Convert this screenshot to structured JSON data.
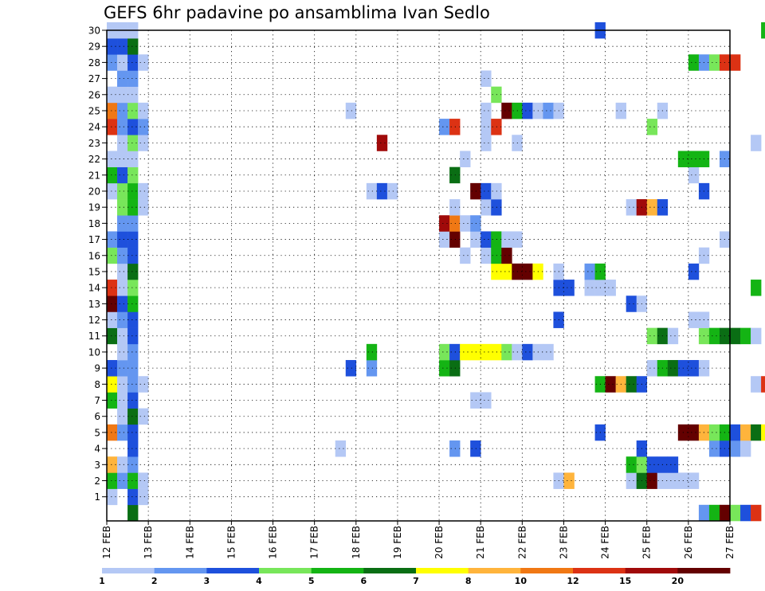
{
  "chart_data": {
    "type": "heatmap",
    "title": "GEFS 6hr padavine po ansamblima Ivan Sedlo",
    "xlabel": "",
    "ylabel": "",
    "x_tick_labels": [
      "12 FEB",
      "13 FEB",
      "14 FEB",
      "15 FEB",
      "16 FEB",
      "17 FEB",
      "18 FEB",
      "19 FEB",
      "20 FEB",
      "21 FEB",
      "22 FEB",
      "23 FEB",
      "24 FEB",
      "25 FEB",
      "26 FEB",
      "27 FEB"
    ],
    "y_tick_labels": [
      "1",
      "2",
      "3",
      "4",
      "5",
      "6",
      "7",
      "8",
      "9",
      "10",
      "11",
      "12",
      "13",
      "14",
      "15",
      "16",
      "17",
      "18",
      "19",
      "20",
      "21",
      "22",
      "23",
      "24",
      "25",
      "26",
      "27",
      "28",
      "29",
      "30"
    ],
    "ylim": [
      0,
      30
    ],
    "grid": true,
    "color_scale": {
      "levels": [
        1,
        2,
        3,
        4,
        5,
        6,
        7,
        8,
        10,
        12,
        15,
        20
      ],
      "colors": [
        "#b4c8f5",
        "#6496f0",
        "#1e50dc",
        "#78e65a",
        "#14b414",
        "#0a6e14",
        "#ffff00",
        "#ffb43c",
        "#f07814",
        "#dc3214",
        "#a00a0a",
        "#640000"
      ]
    },
    "cells": [
      [
        0,
        0,
        1
      ],
      [
        0,
        1,
        5
      ],
      [
        0,
        2,
        8
      ],
      [
        0,
        4,
        9
      ],
      [
        0,
        6,
        5
      ],
      [
        0,
        7,
        7
      ],
      [
        0,
        8,
        3
      ],
      [
        0,
        10,
        6
      ],
      [
        0,
        11,
        1
      ],
      [
        0,
        12,
        12
      ],
      [
        0,
        13,
        10
      ],
      [
        0,
        15,
        4
      ],
      [
        0,
        16,
        2
      ],
      [
        0,
        19,
        1
      ],
      [
        0,
        20,
        5
      ],
      [
        0,
        21,
        1
      ],
      [
        0,
        23,
        10
      ],
      [
        0,
        24,
        9
      ],
      [
        0,
        25,
        1
      ],
      [
        0,
        27,
        2
      ],
      [
        0,
        28,
        3
      ],
      [
        0,
        29,
        1
      ],
      [
        1,
        1,
        2
      ],
      [
        1,
        2,
        1
      ],
      [
        1,
        4,
        2
      ],
      [
        1,
        5,
        1
      ],
      [
        1,
        6,
        1
      ],
      [
        1,
        7,
        1
      ],
      [
        1,
        8,
        2
      ],
      [
        1,
        9,
        1
      ],
      [
        1,
        10,
        1
      ],
      [
        1,
        11,
        2
      ],
      [
        1,
        12,
        3
      ],
      [
        1,
        13,
        1
      ],
      [
        1,
        14,
        1
      ],
      [
        1,
        15,
        2
      ],
      [
        1,
        16,
        3
      ],
      [
        1,
        17,
        2
      ],
      [
        1,
        18,
        4
      ],
      [
        1,
        19,
        4
      ],
      [
        1,
        20,
        3
      ],
      [
        1,
        21,
        1
      ],
      [
        1,
        22,
        1
      ],
      [
        1,
        23,
        2
      ],
      [
        1,
        24,
        2
      ],
      [
        1,
        25,
        1
      ],
      [
        1,
        26,
        2
      ],
      [
        1,
        27,
        1
      ],
      [
        1,
        28,
        3
      ],
      [
        1,
        29,
        1
      ],
      [
        2,
        -1,
        6
      ],
      [
        2,
        0,
        3
      ],
      [
        2,
        1,
        5
      ],
      [
        2,
        2,
        2
      ],
      [
        2,
        3,
        3
      ],
      [
        2,
        4,
        3
      ],
      [
        2,
        5,
        6
      ],
      [
        2,
        6,
        3
      ],
      [
        2,
        7,
        2
      ],
      [
        2,
        8,
        2
      ],
      [
        2,
        9,
        2
      ],
      [
        2,
        10,
        3
      ],
      [
        2,
        11,
        3
      ],
      [
        2,
        12,
        5
      ],
      [
        2,
        13,
        4
      ],
      [
        2,
        14,
        6
      ],
      [
        2,
        15,
        3
      ],
      [
        2,
        16,
        3
      ],
      [
        2,
        17,
        2
      ],
      [
        2,
        18,
        5
      ],
      [
        2,
        19,
        5
      ],
      [
        2,
        20,
        4
      ],
      [
        2,
        21,
        1
      ],
      [
        2,
        22,
        4
      ],
      [
        2,
        23,
        3
      ],
      [
        2,
        24,
        4
      ],
      [
        2,
        25,
        1
      ],
      [
        2,
        26,
        2
      ],
      [
        2,
        27,
        3
      ],
      [
        2,
        28,
        6
      ],
      [
        2,
        29,
        1
      ],
      [
        3,
        0,
        1
      ],
      [
        3,
        1,
        1
      ],
      [
        3,
        5,
        1
      ],
      [
        3,
        7,
        1
      ],
      [
        3,
        18,
        1
      ],
      [
        3,
        19,
        1
      ],
      [
        3,
        22,
        1
      ],
      [
        3,
        23,
        2
      ],
      [
        3,
        24,
        1
      ],
      [
        3,
        27,
        1
      ],
      [
        22,
        3,
        1
      ],
      [
        23,
        8,
        3
      ],
      [
        23,
        24,
        1
      ],
      [
        25,
        8,
        2
      ],
      [
        25,
        9,
        5
      ],
      [
        25,
        19,
        1
      ],
      [
        26,
        19,
        3
      ],
      [
        26,
        22,
        11
      ],
      [
        27,
        19,
        1
      ],
      [
        32,
        8,
        5
      ],
      [
        32,
        9,
        4
      ],
      [
        32,
        16,
        1
      ],
      [
        32,
        17,
        11
      ],
      [
        32,
        23,
        2
      ],
      [
        33,
        3,
        2
      ],
      [
        33,
        8,
        6
      ],
      [
        33,
        9,
        3
      ],
      [
        33,
        16,
        12
      ],
      [
        33,
        17,
        9
      ],
      [
        33,
        18,
        1
      ],
      [
        33,
        20,
        6
      ],
      [
        33,
        23,
        10
      ],
      [
        34,
        9,
        7
      ],
      [
        34,
        15,
        1
      ],
      [
        34,
        17,
        1
      ],
      [
        34,
        21,
        1
      ],
      [
        35,
        3,
        3
      ],
      [
        35,
        6,
        1
      ],
      [
        35,
        9,
        7
      ],
      [
        35,
        16,
        1
      ],
      [
        35,
        17,
        2
      ],
      [
        35,
        19,
        15
      ],
      [
        36,
        6,
        1
      ],
      [
        36,
        9,
        7
      ],
      [
        36,
        15,
        1
      ],
      [
        36,
        16,
        3
      ],
      [
        36,
        18,
        1
      ],
      [
        36,
        19,
        3
      ],
      [
        36,
        22,
        1
      ],
      [
        36,
        23,
        1
      ],
      [
        36,
        24,
        1
      ],
      [
        36,
        26,
        1
      ],
      [
        37,
        9,
        7
      ],
      [
        37,
        14,
        7
      ],
      [
        37,
        15,
        5
      ],
      [
        37,
        16,
        5
      ],
      [
        37,
        18,
        3
      ],
      [
        37,
        19,
        1
      ],
      [
        37,
        23,
        10
      ],
      [
        37,
        25,
        4
      ],
      [
        38,
        9,
        4
      ],
      [
        38,
        14,
        7
      ],
      [
        38,
        15,
        19
      ],
      [
        38,
        16,
        1
      ],
      [
        38,
        24,
        12
      ],
      [
        39,
        9,
        1
      ],
      [
        39,
        14,
        20
      ],
      [
        39,
        16,
        1
      ],
      [
        39,
        22,
        1
      ],
      [
        39,
        24,
        5
      ],
      [
        40,
        9,
        3
      ],
      [
        40,
        14,
        21
      ],
      [
        40,
        24,
        3
      ],
      [
        41,
        9,
        1
      ],
      [
        41,
        14,
        7
      ],
      [
        41,
        24,
        1
      ],
      [
        42,
        9,
        1
      ],
      [
        42,
        24,
        2
      ],
      [
        43,
        1,
        1
      ],
      [
        43,
        11,
        3
      ],
      [
        43,
        13,
        3
      ],
      [
        43,
        14,
        1
      ],
      [
        43,
        24,
        1
      ],
      [
        44,
        1,
        8
      ],
      [
        44,
        13,
        3
      ],
      [
        46,
        13,
        1
      ],
      [
        46,
        14,
        2
      ],
      [
        47,
        4,
        3
      ],
      [
        47,
        7,
        5
      ],
      [
        47,
        13,
        1
      ],
      [
        47,
        14,
        5
      ],
      [
        47,
        29,
        3
      ],
      [
        48,
        7,
        15
      ],
      [
        48,
        13,
        1
      ],
      [
        49,
        7,
        8
      ],
      [
        49,
        24,
        1
      ],
      [
        50,
        1,
        1
      ],
      [
        50,
        2,
        5
      ],
      [
        50,
        7,
        6
      ],
      [
        50,
        12,
        3
      ],
      [
        50,
        18,
        1
      ],
      [
        51,
        1,
        6
      ],
      [
        51,
        2,
        4
      ],
      [
        51,
        3,
        3
      ],
      [
        51,
        7,
        3
      ],
      [
        51,
        12,
        1
      ],
      [
        51,
        18,
        11
      ],
      [
        52,
        1,
        15
      ],
      [
        52,
        2,
        3
      ],
      [
        52,
        8,
        1
      ],
      [
        52,
        10,
        4
      ],
      [
        52,
        18,
        8
      ],
      [
        52,
        23,
        4
      ],
      [
        53,
        1,
        1
      ],
      [
        53,
        2,
        3
      ],
      [
        53,
        8,
        5
      ],
      [
        53,
        10,
        6
      ],
      [
        53,
        18,
        3
      ],
      [
        53,
        24,
        1
      ],
      [
        54,
        1,
        1
      ],
      [
        54,
        2,
        3
      ],
      [
        54,
        8,
        6
      ],
      [
        54,
        10,
        1
      ],
      [
        55,
        1,
        1
      ],
      [
        55,
        4,
        21
      ],
      [
        55,
        8,
        3
      ],
      [
        55,
        21,
        5
      ],
      [
        56,
        1,
        1
      ],
      [
        56,
        4,
        12
      ],
      [
        56,
        8,
        3
      ],
      [
        56,
        11,
        1
      ],
      [
        56,
        14,
        3
      ],
      [
        56,
        20,
        1
      ],
      [
        56,
        21,
        5
      ],
      [
        56,
        27,
        5
      ],
      [
        57,
        -1,
        2
      ],
      [
        57,
        4,
        8
      ],
      [
        57,
        8,
        1
      ],
      [
        57,
        10,
        4
      ],
      [
        57,
        11,
        1
      ],
      [
        57,
        15,
        1
      ],
      [
        57,
        19,
        3
      ],
      [
        57,
        21,
        5
      ],
      [
        57,
        27,
        2
      ],
      [
        58,
        -1,
        5
      ],
      [
        58,
        3,
        2
      ],
      [
        58,
        4,
        4
      ],
      [
        58,
        10,
        5
      ],
      [
        58,
        27,
        4
      ],
      [
        59,
        -1,
        21
      ],
      [
        59,
        3,
        3
      ],
      [
        59,
        4,
        5
      ],
      [
        59,
        10,
        6
      ],
      [
        59,
        16,
        1
      ],
      [
        59,
        21,
        2
      ],
      [
        59,
        27,
        10
      ],
      [
        60,
        -1,
        4
      ],
      [
        60,
        3,
        2
      ],
      [
        60,
        4,
        3
      ],
      [
        60,
        10,
        6
      ],
      [
        60,
        27,
        10
      ],
      [
        61,
        -1,
        3
      ],
      [
        61,
        3,
        1
      ],
      [
        61,
        4,
        8
      ],
      [
        61,
        10,
        5
      ],
      [
        62,
        -1,
        10
      ],
      [
        62,
        4,
        6
      ],
      [
        62,
        7,
        1
      ],
      [
        62,
        10,
        1
      ],
      [
        62,
        13,
        5
      ],
      [
        62,
        22,
        1
      ],
      [
        63,
        4,
        7
      ],
      [
        63,
        7,
        10
      ],
      [
        63,
        29,
        5
      ]
    ]
  }
}
